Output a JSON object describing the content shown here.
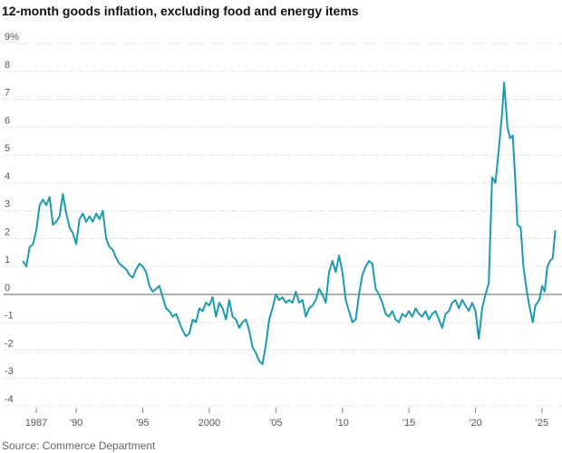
{
  "chart_data": {
    "type": "line",
    "title": "12-month goods inflation, excluding food and energy items",
    "source": "Source: Commerce Department",
    "color": "#1a9bb0",
    "grid": true,
    "xlim": [
      1985.5,
      2026.5
    ],
    "ylim": [
      -4,
      9
    ],
    "xticks": [
      1987,
      {
        "value": 1990,
        "label": "'90"
      },
      {
        "value": 1995,
        "label": "'95"
      },
      2000,
      {
        "value": 2005,
        "label": "'05"
      },
      {
        "value": 2010,
        "label": "'10"
      },
      {
        "value": 2015,
        "label": "'15"
      },
      {
        "value": 2020,
        "label": "'20"
      },
      {
        "value": 2025,
        "label": "'25"
      }
    ],
    "yticks": [
      {
        "value": 9,
        "label": "9%"
      },
      8,
      7,
      6,
      5,
      4,
      3,
      2,
      1,
      0,
      -1,
      -2,
      -3,
      -4
    ],
    "x": [
      1986.0,
      1986.25,
      1986.5,
      1986.75,
      1987.0,
      1987.25,
      1987.5,
      1987.75,
      1988.0,
      1988.25,
      1988.5,
      1988.75,
      1989.0,
      1989.25,
      1989.5,
      1989.75,
      1990.0,
      1990.25,
      1990.5,
      1990.75,
      1991.0,
      1991.25,
      1991.5,
      1991.75,
      1992.0,
      1992.25,
      1992.5,
      1992.75,
      1993.0,
      1993.25,
      1993.5,
      1993.75,
      1994.0,
      1994.25,
      1994.5,
      1994.75,
      1995.0,
      1995.25,
      1995.5,
      1995.75,
      1996.0,
      1996.25,
      1996.5,
      1996.75,
      1997.0,
      1997.25,
      1997.5,
      1997.75,
      1998.0,
      1998.25,
      1998.5,
      1998.75,
      1999.0,
      1999.25,
      1999.5,
      1999.75,
      2000.0,
      2000.25,
      2000.5,
      2000.75,
      2001.0,
      2001.25,
      2001.5,
      2001.75,
      2002.0,
      2002.25,
      2002.5,
      2002.75,
      2003.0,
      2003.25,
      2003.5,
      2003.75,
      2004.0,
      2004.25,
      2004.5,
      2004.75,
      2005.0,
      2005.25,
      2005.5,
      2005.75,
      2006.0,
      2006.25,
      2006.5,
      2006.75,
      2007.0,
      2007.25,
      2007.5,
      2007.75,
      2008.0,
      2008.25,
      2008.5,
      2008.75,
      2009.0,
      2009.25,
      2009.5,
      2009.75,
      2010.0,
      2010.25,
      2010.5,
      2010.75,
      2011.0,
      2011.25,
      2011.5,
      2011.75,
      2012.0,
      2012.25,
      2012.5,
      2012.75,
      2013.0,
      2013.25,
      2013.5,
      2013.75,
      2014.0,
      2014.25,
      2014.5,
      2014.75,
      2015.0,
      2015.25,
      2015.5,
      2015.75,
      2016.0,
      2016.25,
      2016.5,
      2016.75,
      2017.0,
      2017.25,
      2017.5,
      2017.75,
      2018.0,
      2018.25,
      2018.5,
      2018.75,
      2019.0,
      2019.25,
      2019.5,
      2019.75,
      2020.0,
      2020.25,
      2020.5,
      2020.75,
      2021.0,
      2021.25,
      2021.5,
      2021.75,
      2022.0,
      2022.15,
      2022.4,
      2022.6,
      2022.8,
      2023.0,
      2023.15,
      2023.4,
      2023.6,
      2023.8,
      2024.0,
      2024.3,
      2024.5,
      2024.8,
      2025.0,
      2025.2,
      2025.4,
      2025.6,
      2025.8,
      2026.0
    ],
    "values": [
      1.2,
      1.0,
      1.7,
      1.8,
      2.3,
      3.2,
      3.4,
      3.2,
      3.5,
      2.5,
      2.6,
      2.8,
      3.6,
      2.9,
      2.4,
      2.2,
      1.8,
      2.7,
      2.9,
      2.6,
      2.8,
      2.6,
      2.9,
      2.7,
      3.0,
      2.0,
      1.7,
      1.6,
      1.3,
      1.1,
      1.0,
      0.9,
      0.7,
      0.6,
      0.9,
      1.1,
      1.0,
      0.8,
      0.3,
      0.1,
      0.2,
      0.3,
      -0.1,
      -0.5,
      -0.6,
      -0.8,
      -0.7,
      -1.0,
      -1.3,
      -1.5,
      -1.4,
      -0.9,
      -1.0,
      -0.5,
      -0.6,
      -0.3,
      -0.4,
      -0.1,
      -0.8,
      -0.3,
      -0.5,
      -0.9,
      -0.2,
      -0.8,
      -0.9,
      -1.2,
      -1.0,
      -0.9,
      -1.3,
      -1.9,
      -2.1,
      -2.4,
      -2.5,
      -1.8,
      -0.9,
      -0.5,
      0.0,
      -0.2,
      -0.1,
      -0.3,
      -0.2,
      -0.3,
      0.1,
      -0.3,
      -0.2,
      -0.8,
      -0.5,
      -0.4,
      -0.2,
      0.2,
      0.0,
      -0.3,
      0.8,
      1.2,
      0.8,
      1.4,
      0.8,
      -0.2,
      -0.6,
      -1.0,
      -0.9,
      0.0,
      0.7,
      1.0,
      1.2,
      1.1,
      0.2,
      0.0,
      -0.3,
      -0.7,
      -0.8,
      -0.6,
      -0.9,
      -1.0,
      -0.7,
      -0.8,
      -0.6,
      -0.8,
      -0.5,
      -0.7,
      -0.8,
      -0.6,
      -0.9,
      -0.7,
      -0.6,
      -0.9,
      -1.2,
      -0.7,
      -0.6,
      -0.3,
      -0.2,
      -0.5,
      -0.2,
      -0.4,
      -0.6,
      -0.3,
      -0.6,
      -1.6,
      -0.5,
      0.0,
      0.4,
      4.2,
      4.0,
      5.2,
      6.5,
      7.6,
      6.0,
      5.6,
      5.7,
      4.0,
      2.5,
      2.4,
      1.0,
      0.3,
      -0.3,
      -1.0,
      -0.4,
      -0.2,
      0.3,
      0.1,
      1.0,
      1.2,
      1.3,
      2.3
    ]
  }
}
